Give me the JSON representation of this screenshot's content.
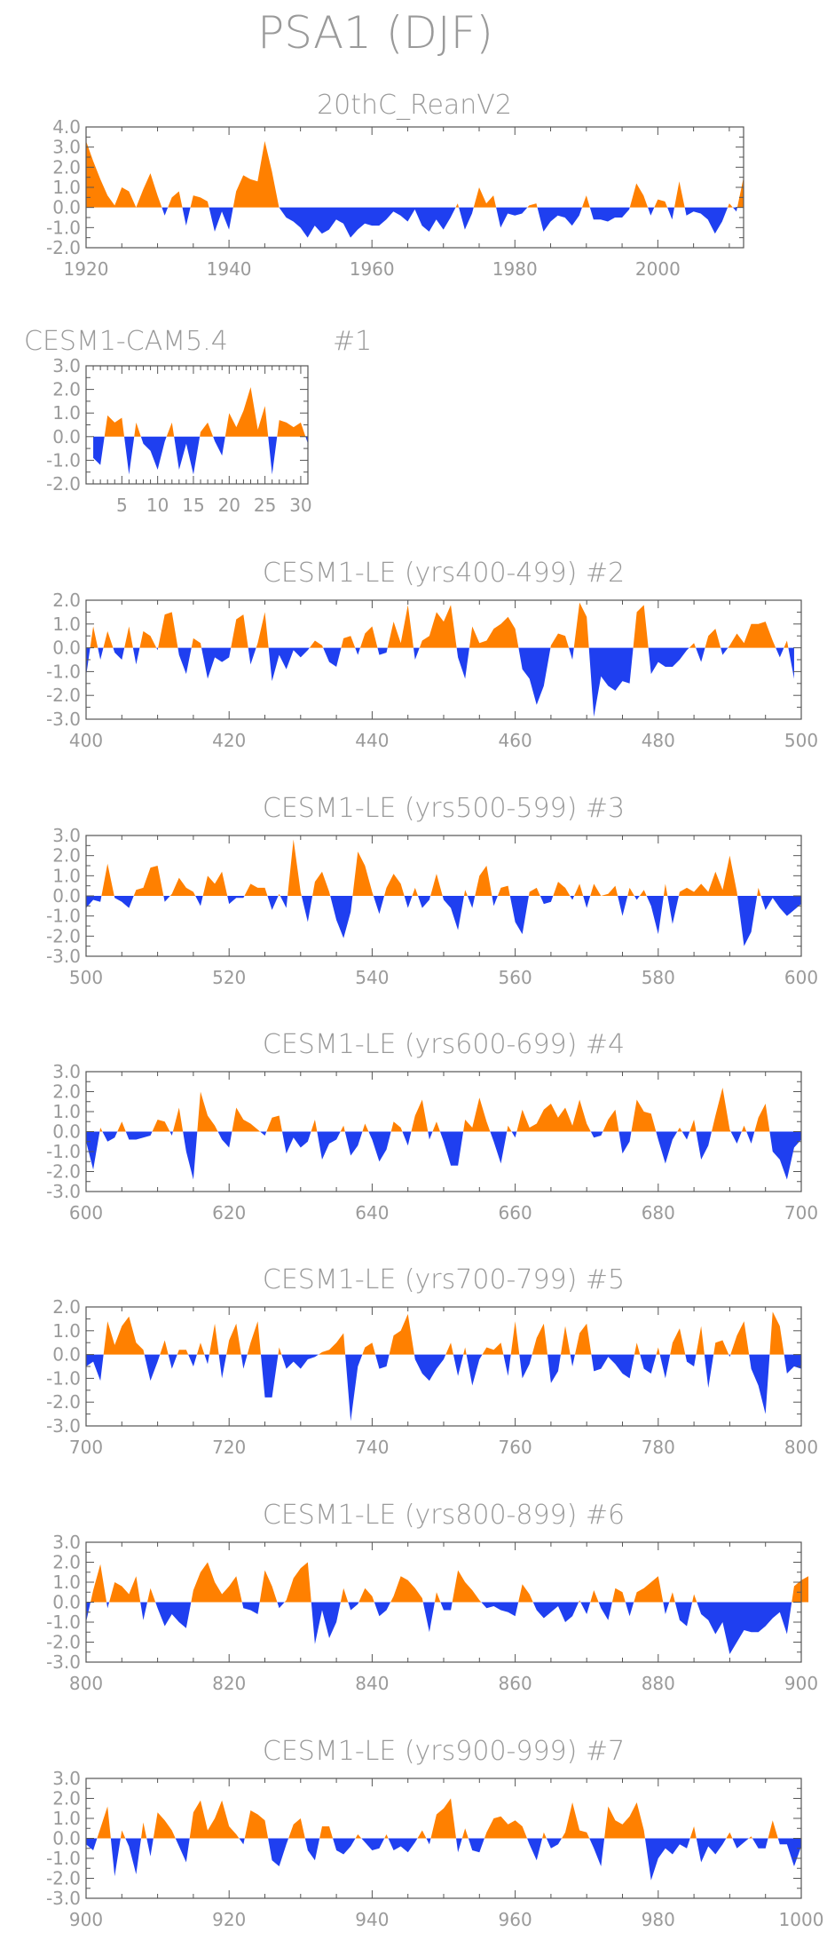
{
  "title": "PSA1 (DJF)",
  "colors": {
    "positive": "#FF8000",
    "negative": "#1F3FF0",
    "text": "#9a9a9a",
    "frame": "#555555"
  },
  "chart_data": [
    {
      "type": "area",
      "title": "20thC_ReanV2",
      "label": "",
      "xlim": [
        1920,
        2012
      ],
      "ylim": [
        -2,
        4
      ],
      "yticks": [
        "4.0",
        "3.0",
        "2.0",
        "1.0",
        "0.0",
        "-1.0",
        "-2.0"
      ],
      "xticks": [
        "1920",
        "1940",
        "1960",
        "1980",
        "2000"
      ],
      "x_start": 1920,
      "values": [
        3.3,
        2.3,
        1.4,
        0.6,
        0.1,
        1.0,
        0.8,
        0.0,
        0.9,
        1.7,
        0.6,
        -0.4,
        0.5,
        0.8,
        -0.9,
        0.6,
        0.5,
        0.3,
        -1.2,
        -0.2,
        -1.1,
        0.8,
        1.6,
        1.4,
        1.3,
        3.3,
        1.8,
        0.0,
        -0.5,
        -0.7,
        -1.0,
        -1.5,
        -0.9,
        -1.3,
        -1.1,
        -0.6,
        -0.8,
        -1.5,
        -1.1,
        -0.8,
        -0.9,
        -0.9,
        -0.6,
        -0.2,
        -0.4,
        -0.7,
        -0.1,
        -0.9,
        -1.2,
        -0.6,
        -1.1,
        -0.5,
        0.2,
        -1.1,
        -0.3,
        1.0,
        0.2,
        0.6,
        -1.0,
        -0.3,
        -0.4,
        -0.3,
        0.1,
        0.2,
        -1.2,
        -0.7,
        -0.4,
        -0.5,
        -0.9,
        -0.4,
        0.6,
        -0.6,
        -0.6,
        -0.7,
        -0.5,
        -0.5,
        -0.1,
        1.2,
        0.6,
        -0.4,
        0.4,
        0.3,
        -0.6,
        1.3,
        -0.4,
        -0.2,
        -0.3,
        -0.6,
        -1.3,
        -0.7,
        0.2,
        -0.2,
        1.5
      ]
    },
    {
      "type": "area",
      "title": "CESM1-CAM5.4",
      "label": "#1",
      "xlim": [
        0,
        31
      ],
      "ylim": [
        -2,
        3
      ],
      "yticks": [
        "3.0",
        "2.0",
        "1.0",
        "0.0",
        "-1.0",
        "-2.0"
      ],
      "xticks": [
        "5",
        "10",
        "15",
        "20",
        "25",
        "30"
      ],
      "x_start": 1,
      "values": [
        -0.9,
        -1.2,
        0.9,
        0.6,
        0.8,
        -1.6,
        0.6,
        -0.3,
        -0.6,
        -1.4,
        -0.2,
        0.6,
        -1.4,
        -0.3,
        -1.6,
        0.2,
        0.6,
        -0.2,
        -0.8,
        1.0,
        0.4,
        1.1,
        2.1,
        0.3,
        1.3,
        -1.6,
        0.7,
        0.6,
        0.4,
        0.6,
        -0.3
      ]
    },
    {
      "type": "area",
      "title": "CESM1-LE (yrs400-499)",
      "label": "#2",
      "xlim": [
        400,
        500
      ],
      "ylim": [
        -3,
        2
      ],
      "yticks": [
        "2.0",
        "1.0",
        "0.0",
        "-1.0",
        "-2.0",
        "-3.0"
      ],
      "xticks": [
        "400",
        "420",
        "440",
        "460",
        "480",
        "500"
      ],
      "x_start": 400,
      "values": [
        -1.2,
        0.9,
        -0.5,
        0.7,
        -0.2,
        -0.5,
        0.9,
        -0.7,
        0.7,
        0.5,
        -0.1,
        1.4,
        1.5,
        -0.3,
        -1.1,
        0.4,
        0.2,
        -1.3,
        -0.4,
        -0.6,
        -0.4,
        1.2,
        1.4,
        -0.7,
        0.2,
        1.5,
        -1.4,
        -0.3,
        -0.9,
        -0.1,
        -0.4,
        -0.1,
        0.3,
        0.1,
        -0.6,
        -0.8,
        0.4,
        0.5,
        -0.3,
        0.6,
        0.9,
        -0.3,
        -0.2,
        1.1,
        0.2,
        1.8,
        -0.5,
        0.3,
        0.5,
        1.5,
        1.1,
        1.8,
        -0.4,
        -1.3,
        0.9,
        0.2,
        0.3,
        0.8,
        1.0,
        1.3,
        0.8,
        -0.9,
        -1.3,
        -2.4,
        -1.6,
        0.1,
        0.6,
        0.5,
        -0.5,
        1.9,
        1.3,
        -2.9,
        -1.2,
        -1.6,
        -1.8,
        -1.4,
        -1.5,
        1.5,
        1.8,
        -1.1,
        -0.6,
        -0.8,
        -0.8,
        -0.5,
        -0.1,
        0.2,
        -0.6,
        0.5,
        0.8,
        -0.3,
        0.1,
        0.6,
        0.2,
        1.0,
        1.0,
        1.1,
        0.3,
        -0.4,
        0.3,
        -1.3
      ]
    },
    {
      "type": "area",
      "title": "CESM1-LE (yrs500-599)",
      "label": "#3",
      "xlim": [
        500,
        600
      ],
      "ylim": [
        -3,
        3
      ],
      "yticks": [
        "3.0",
        "2.0",
        "1.0",
        "0.0",
        "-1.0",
        "-2.0",
        "-3.0"
      ],
      "xticks": [
        "500",
        "520",
        "540",
        "560",
        "580",
        "600"
      ],
      "x_start": 500,
      "values": [
        -0.6,
        -0.2,
        -0.3,
        1.6,
        -0.1,
        -0.3,
        -0.6,
        0.3,
        0.4,
        1.4,
        1.5,
        -0.3,
        0.1,
        0.9,
        0.4,
        0.2,
        -0.5,
        1.0,
        0.6,
        1.2,
        -0.4,
        -0.1,
        -0.1,
        0.6,
        0.4,
        0.4,
        -0.7,
        0.1,
        -0.6,
        2.8,
        0.2,
        -1.3,
        0.7,
        1.2,
        0.2,
        -1.2,
        -2.1,
        -0.8,
        2.2,
        1.5,
        0.2,
        -0.9,
        0.4,
        1.1,
        0.6,
        -0.6,
        0.4,
        -0.6,
        -0.2,
        1.1,
        -0.2,
        -0.6,
        -1.7,
        0.3,
        -0.6,
        1.0,
        1.5,
        -0.5,
        0.4,
        0.5,
        -1.3,
        -1.9,
        0.2,
        0.4,
        -0.4,
        -0.3,
        0.7,
        0.4,
        -0.2,
        0.6,
        -0.6,
        0.6,
        0.0,
        0.1,
        0.5,
        -1.0,
        0.4,
        -0.2,
        0.3,
        -0.5,
        -1.9,
        0.6,
        -1.4,
        0.2,
        0.4,
        0.2,
        0.6,
        0.2,
        1.2,
        0.3,
        2.0,
        0.2,
        -2.5,
        -1.8,
        0.4,
        -0.7,
        -0.1,
        -0.6,
        -1.0,
        -0.7,
        -0.4
      ]
    },
    {
      "type": "area",
      "title": "CESM1-LE (yrs600-699)",
      "label": "#4",
      "xlim": [
        600,
        700
      ],
      "ylim": [
        -3,
        3
      ],
      "yticks": [
        "3.0",
        "2.0",
        "1.0",
        "0.0",
        "-1.0",
        "-2.0",
        "-3.0"
      ],
      "xticks": [
        "600",
        "620",
        "640",
        "660",
        "680",
        "700"
      ],
      "x_start": 600,
      "values": [
        -0.5,
        -1.9,
        0.2,
        -0.5,
        -0.3,
        0.5,
        -0.4,
        -0.4,
        -0.3,
        -0.2,
        0.6,
        0.5,
        -0.2,
        1.2,
        -1.0,
        -2.4,
        2.0,
        0.8,
        0.3,
        -0.4,
        -0.8,
        1.2,
        0.6,
        0.4,
        0.1,
        -0.2,
        0.7,
        0.8,
        -1.1,
        -0.3,
        -0.8,
        -0.5,
        0.6,
        -1.4,
        -0.6,
        -0.4,
        0.3,
        -1.2,
        -0.7,
        0.4,
        -0.4,
        -1.5,
        -0.9,
        0.5,
        0.2,
        -0.7,
        0.8,
        1.6,
        -0.4,
        0.5,
        -0.5,
        -1.7,
        -1.7,
        0.6,
        0.2,
        1.7,
        0.5,
        -0.5,
        -1.6,
        0.3,
        -0.3,
        1.1,
        0.2,
        0.4,
        1.1,
        1.4,
        0.7,
        1.2,
        0.3,
        1.6,
        0.4,
        -0.3,
        -0.2,
        0.6,
        1.1,
        -1.1,
        -0.5,
        1.6,
        1.0,
        0.9,
        -0.4,
        -1.6,
        -0.4,
        0.2,
        -0.4,
        0.6,
        -1.4,
        -0.7,
        0.8,
        2.2,
        0.1,
        -0.6,
        0.3,
        -0.6,
        0.7,
        1.4,
        -1.0,
        -1.4,
        -2.4,
        -0.8,
        -0.4
      ]
    },
    {
      "type": "area",
      "title": "CESM1-LE (yrs700-799)",
      "label": "#5",
      "xlim": [
        700,
        800
      ],
      "ylim": [
        -3,
        2
      ],
      "yticks": [
        "2.0",
        "1.0",
        "0.0",
        "-1.0",
        "-2.0",
        "-3.0"
      ],
      "xticks": [
        "700",
        "720",
        "740",
        "760",
        "780",
        "800"
      ],
      "x_start": 700,
      "values": [
        -0.5,
        -0.3,
        -1.1,
        1.4,
        0.4,
        1.2,
        1.6,
        0.5,
        0.2,
        -1.1,
        -0.3,
        0.6,
        -0.6,
        0.2,
        0.2,
        -0.5,
        0.5,
        -0.4,
        1.3,
        -1.0,
        0.6,
        1.3,
        -0.6,
        0.5,
        1.4,
        -1.8,
        -1.8,
        0.3,
        -0.6,
        -0.3,
        -0.6,
        -0.2,
        -0.1,
        0.1,
        0.2,
        0.5,
        0.9,
        -2.8,
        -0.5,
        0.3,
        0.5,
        -0.6,
        -0.5,
        0.8,
        1.0,
        1.7,
        -0.2,
        -0.8,
        -1.1,
        -0.6,
        -0.2,
        0.5,
        -0.9,
        0.3,
        -1.3,
        -0.2,
        0.3,
        0.2,
        0.5,
        -0.9,
        1.4,
        -1.0,
        -0.4,
        0.7,
        1.3,
        -1.2,
        -0.7,
        1.2,
        -0.5,
        0.9,
        1.3,
        -0.7,
        -0.6,
        -0.1,
        -0.4,
        -0.8,
        -1.0,
        0.5,
        -0.6,
        -0.8,
        0.3,
        -1.0,
        0.5,
        1.1,
        -0.3,
        -0.5,
        1.2,
        -1.4,
        0.5,
        0.6,
        -0.1,
        0.8,
        1.4,
        -0.6,
        -1.3,
        -2.5,
        1.8,
        1.2,
        -0.8,
        -0.5,
        -0.6
      ]
    },
    {
      "type": "area",
      "title": "CESM1-LE (yrs800-899)",
      "label": "#6",
      "xlim": [
        800,
        900
      ],
      "ylim": [
        -3,
        3
      ],
      "yticks": [
        "3.0",
        "2.0",
        "1.0",
        "0.0",
        "-1.0",
        "-2.0",
        "-3.0"
      ],
      "xticks": [
        "800",
        "820",
        "840",
        "860",
        "880",
        "900"
      ],
      "x_start": 800,
      "values": [
        -1.0,
        0.6,
        1.9,
        -0.3,
        1.0,
        0.8,
        0.4,
        1.3,
        -0.9,
        0.7,
        -0.3,
        -1.2,
        -0.6,
        -1.0,
        -1.3,
        0.6,
        1.5,
        2.0,
        1.0,
        0.4,
        0.8,
        1.3,
        -0.3,
        -0.4,
        -0.6,
        1.6,
        0.8,
        -0.3,
        0.1,
        1.2,
        1.7,
        2.0,
        -2.1,
        -0.4,
        -1.8,
        -1.0,
        0.7,
        -0.4,
        -0.1,
        0.7,
        0.3,
        -0.7,
        -0.4,
        0.3,
        1.3,
        1.1,
        0.7,
        0.2,
        -1.5,
        0.5,
        -0.4,
        -0.4,
        1.6,
        1.0,
        0.6,
        0.1,
        -0.3,
        -0.2,
        -0.4,
        -0.5,
        -0.7,
        0.9,
        0.4,
        -0.4,
        -0.8,
        -0.5,
        -0.2,
        -1.0,
        -0.7,
        0.1,
        -0.6,
        0.6,
        -0.3,
        -0.9,
        0.7,
        0.5,
        -0.7,
        0.5,
        0.7,
        1.0,
        1.3,
        -0.6,
        0.5,
        -0.9,
        -1.2,
        0.4,
        -0.6,
        -0.9,
        -1.6,
        -1.0,
        -2.6,
        -2.0,
        -1.4,
        -1.5,
        -1.5,
        -1.2,
        -0.8,
        -0.5,
        -1.6,
        0.8,
        1.1,
        1.3
      ]
    },
    {
      "type": "area",
      "title": "CESM1-LE (yrs900-999)",
      "label": "#7",
      "xlim": [
        900,
        1000
      ],
      "ylim": [
        -3,
        3
      ],
      "yticks": [
        "3.0",
        "2.0",
        "1.0",
        "0.0",
        "-1.0",
        "-2.0",
        "-3.0"
      ],
      "xticks": [
        "900",
        "920",
        "940",
        "960",
        "980",
        "1000"
      ],
      "x_start": 900,
      "values": [
        -0.3,
        -0.6,
        0.5,
        1.6,
        -1.9,
        0.4,
        -0.4,
        -1.8,
        0.8,
        -0.9,
        1.3,
        0.9,
        0.4,
        -0.4,
        -1.2,
        1.3,
        1.9,
        0.4,
        1.0,
        1.9,
        0.6,
        0.2,
        -0.3,
        1.4,
        1.2,
        0.9,
        -1.1,
        -1.4,
        -0.3,
        0.7,
        1.0,
        -0.6,
        -1.1,
        0.6,
        0.6,
        -0.6,
        -0.8,
        -0.4,
        0.2,
        -0.2,
        -0.6,
        -0.5,
        0.2,
        -0.6,
        -0.4,
        -0.7,
        -0.2,
        0.4,
        -0.3,
        1.2,
        1.5,
        2.0,
        -0.7,
        0.5,
        -0.6,
        -0.7,
        0.3,
        1.0,
        1.1,
        0.7,
        0.9,
        0.6,
        -0.3,
        -1.1,
        0.3,
        -0.5,
        -0.3,
        0.3,
        1.8,
        0.4,
        0.3,
        -0.5,
        -1.4,
        1.6,
        0.9,
        0.7,
        1.1,
        1.8,
        0.4,
        -2.1,
        -1.0,
        -0.5,
        -0.8,
        -0.3,
        -0.5,
        0.6,
        -1.2,
        -0.4,
        -0.8,
        -0.3,
        0.3,
        -0.5,
        -0.2,
        0.1,
        -0.5,
        -0.5,
        0.9,
        -0.3,
        -0.3,
        -1.4,
        -0.4
      ]
    }
  ]
}
